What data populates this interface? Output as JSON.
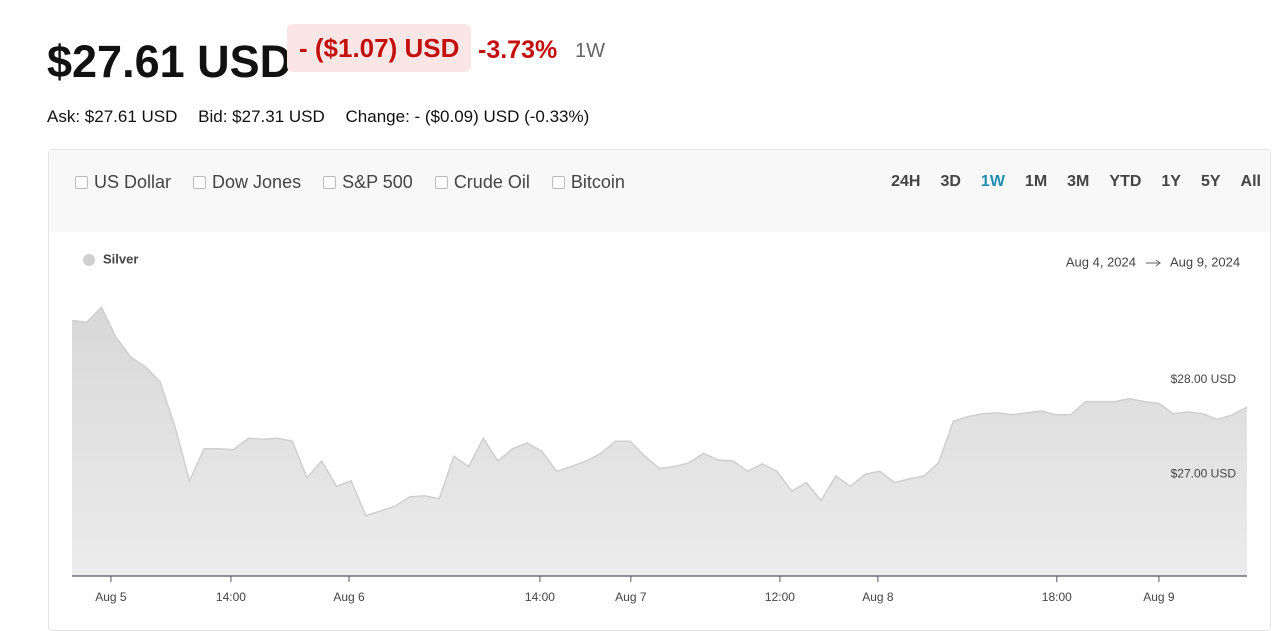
{
  "header": {
    "price": "$27.61 USD",
    "change": "- ($1.07) USD",
    "change_percent": "-3.73%",
    "period": "1W",
    "ask": "Ask: $27.61 USD",
    "bid": "Bid: $27.31 USD",
    "day_change": "Change: - ($0.09) USD (-0.33%)"
  },
  "toolbar": {
    "compare": [
      "US Dollar",
      "Dow Jones",
      "S&P 500",
      "Crude Oil",
      "Bitcoin"
    ],
    "ranges": [
      "24H",
      "3D",
      "1W",
      "1M",
      "3M",
      "YTD",
      "1Y",
      "5Y",
      "All"
    ],
    "active_range": 2
  },
  "chart_data": {
    "type": "area",
    "legend": "Silver",
    "date_from": "Aug 4, 2024",
    "date_to": "Aug 9, 2024",
    "color": "#e2e2e2",
    "line_color": "#cfcfcf",
    "values": [
      28.63,
      28.61,
      28.77,
      28.45,
      28.24,
      28.14,
      27.98,
      27.51,
      26.93,
      27.27,
      27.27,
      27.26,
      27.38,
      27.37,
      27.38,
      27.35,
      26.96,
      27.14,
      26.87,
      26.93,
      26.56,
      26.61,
      26.66,
      26.76,
      26.77,
      26.74,
      27.19,
      27.08,
      27.38,
      27.14,
      27.27,
      27.33,
      27.24,
      27.03,
      27.08,
      27.14,
      27.22,
      27.35,
      27.35,
      27.19,
      27.06,
      27.08,
      27.12,
      27.22,
      27.15,
      27.14,
      27.03,
      27.11,
      27.03,
      26.82,
      26.91,
      26.72,
      26.98,
      26.87,
      27.0,
      27.03,
      26.91,
      26.95,
      26.98,
      27.12,
      27.56,
      27.61,
      27.64,
      27.65,
      27.63,
      27.65,
      27.67,
      27.63,
      27.63,
      27.77,
      27.77,
      27.77,
      27.8,
      27.77,
      27.75,
      27.64,
      27.66,
      27.64,
      27.58,
      27.63,
      27.71
    ],
    "xlim": [
      0,
      80
    ],
    "xticks": [
      {
        "value": 2.65,
        "label": "Aug 5"
      },
      {
        "value": 10.82,
        "label": "14:00"
      },
      {
        "value": 18.86,
        "label": "Aug 6"
      },
      {
        "value": 31.86,
        "label": "14:00"
      },
      {
        "value": 38.05,
        "label": "Aug 7"
      },
      {
        "value": 48.2,
        "label": "12:00"
      },
      {
        "value": 54.87,
        "label": "Aug 8"
      },
      {
        "value": 67.05,
        "label": "18:00"
      },
      {
        "value": 74.0,
        "label": "Aug 9"
      }
    ],
    "ylim": [
      25.92,
      28.9
    ],
    "yticks": [
      {
        "value": 28,
        "label": "$28.00 USD"
      },
      {
        "value": 27,
        "label": "$27.00 USD"
      }
    ]
  }
}
